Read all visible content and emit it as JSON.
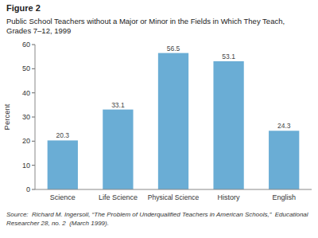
{
  "chart_data": {
    "type": "bar",
    "title": "Public School Teachers without a Major or Minor in the Fields in Which They Teach,\nGrades 7–12, 1999",
    "annotations": [
      "Figure 2",
      "Source:  Richard M. Ingersoll, “The Problem of Underqualified Teachers in American Schools,”  Educational\nResearcher 28, no. 2  (March 1999)."
    ],
    "ylabel": "Percent",
    "categories": [
      "Science",
      "Life Science",
      "Physical Science",
      "History",
      "English"
    ],
    "values": [
      20.3,
      33.1,
      56.5,
      53.1,
      24.3
    ],
    "color": "#6aadd5",
    "ylim": [
      0,
      60
    ],
    "yticks": [
      0,
      10,
      20,
      30,
      40,
      50,
      60
    ],
    "data_labels": true
  }
}
